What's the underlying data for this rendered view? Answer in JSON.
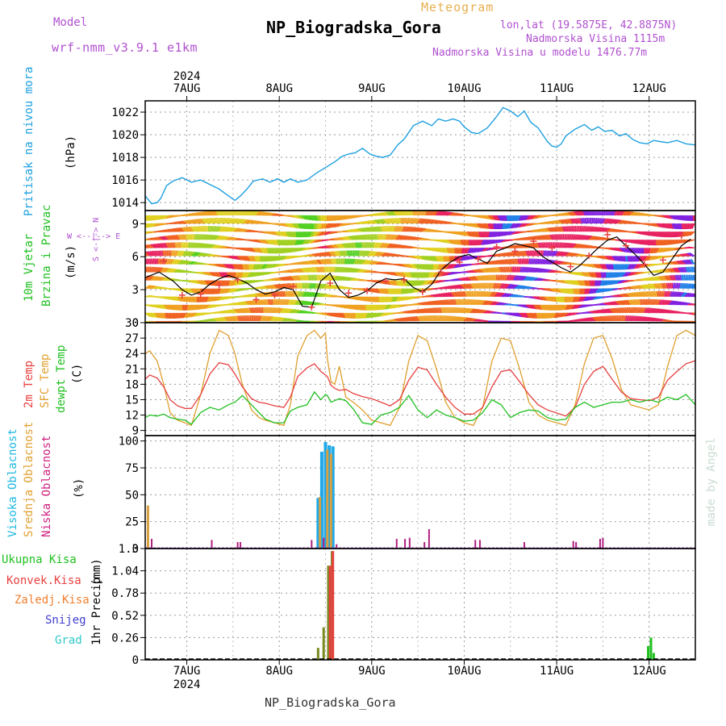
{
  "header": {
    "model_label": "Model",
    "model_name": "wrf-nmm_v3.9.1  e1km",
    "subtitle": "Meteogram",
    "title": "NP_Biogradska_Gora",
    "coords": "lon,lat (19.5875E, 42.8875N)",
    "altitude": "Nadmorska Visina 1115m",
    "model_altitude": "Nadmorska Visina u modelu 1476.77m",
    "watermark": "made by Angel",
    "footer": "NP_Biogradska_Gora"
  },
  "colors": {
    "pressure": "#1ea0e0",
    "t2m": "#e84040",
    "sfc": "#e0a030",
    "dewpt": "#20c020",
    "model": "#b050d0",
    "high_cloud": "#20a8e8",
    "mid_cloud": "#d8a040",
    "low_cloud": "#b02080",
    "total_precip": "#20c020",
    "conv_precip": "#e84040",
    "frozen_precip": "#f08030",
    "snow": "#4040d0",
    "graupel": "#30c8c8"
  },
  "time_axis": {
    "year": "2024",
    "days": [
      "7AUG",
      "8AUG",
      "9AUG",
      "10AUG",
      "11AUG",
      "12AUG"
    ],
    "day_positions": [
      1,
      2,
      3,
      4,
      5,
      6
    ],
    "range": [
      0.55,
      6.5
    ]
  },
  "chart_data": [
    {
      "type": "line",
      "panel": "pressure",
      "ylabel": "Pritisak na nivou mora",
      "unit": "(hPa)",
      "ylim": [
        1013.3,
        1023
      ],
      "yticks": [
        1014,
        1016,
        1018,
        1020,
        1022
      ],
      "x": [
        0.55,
        0.62,
        0.68,
        0.72,
        0.78,
        0.85,
        0.95,
        1.05,
        1.15,
        1.25,
        1.35,
        1.45,
        1.52,
        1.58,
        1.65,
        1.72,
        1.82,
        1.9,
        1.98,
        2.05,
        2.12,
        2.2,
        2.3,
        2.4,
        2.5,
        2.6,
        2.68,
        2.75,
        2.82,
        2.9,
        2.98,
        3.05,
        3.12,
        3.2,
        3.28,
        3.35,
        3.45,
        3.55,
        3.65,
        3.72,
        3.8,
        3.88,
        3.95,
        4.0,
        4.08,
        4.15,
        4.25,
        4.35,
        4.42,
        4.5,
        4.58,
        4.65,
        4.72,
        4.8,
        4.85,
        4.9,
        4.95,
        5.0,
        5.05,
        5.1,
        5.2,
        5.3,
        5.38,
        5.45,
        5.52,
        5.6,
        5.68,
        5.75,
        5.82,
        5.9,
        5.98,
        6.05,
        6.12,
        6.2,
        6.3,
        6.4,
        6.5
      ],
      "values": [
        1014.6,
        1013.9,
        1014.0,
        1014.4,
        1015.5,
        1015.9,
        1016.2,
        1015.8,
        1016.0,
        1015.6,
        1015.2,
        1014.6,
        1014.2,
        1014.6,
        1015.2,
        1015.9,
        1016.1,
        1015.8,
        1016.1,
        1015.8,
        1016.1,
        1015.8,
        1016.0,
        1016.6,
        1017.1,
        1017.6,
        1018.1,
        1018.3,
        1018.4,
        1018.8,
        1018.3,
        1018.1,
        1018.0,
        1018.2,
        1019.1,
        1019.6,
        1020.8,
        1021.2,
        1020.8,
        1021.4,
        1021.2,
        1021.4,
        1021.2,
        1020.7,
        1020.2,
        1020.1,
        1020.6,
        1021.6,
        1022.4,
        1022.1,
        1021.6,
        1022.1,
        1021.1,
        1020.6,
        1020.0,
        1019.4,
        1019.0,
        1018.9,
        1019.2,
        1019.9,
        1020.5,
        1020.9,
        1020.4,
        1020.7,
        1020.3,
        1020.4,
        1019.9,
        1020.1,
        1019.6,
        1019.3,
        1019.2,
        1019.5,
        1019.4,
        1019.3,
        1019.5,
        1019.2,
        1019.1
      ]
    },
    {
      "type": "line",
      "panel": "wind",
      "ylabel": "10m Vjetar",
      "ylabel2": "Brzina i Pravac",
      "unit": "(m/s)",
      "compass": "S <-|-> N",
      "compass2": "W <--|--> E",
      "ylim": [
        0,
        10.2
      ],
      "yticks": [
        0,
        3,
        6,
        9
      ],
      "x": [
        0.55,
        0.7,
        0.85,
        0.95,
        1.05,
        1.15,
        1.25,
        1.35,
        1.45,
        1.55,
        1.65,
        1.75,
        1.85,
        1.95,
        2.05,
        2.15,
        2.25,
        2.35,
        2.45,
        2.55,
        2.65,
        2.75,
        2.85,
        2.95,
        3.05,
        3.15,
        3.25,
        3.35,
        3.45,
        3.55,
        3.65,
        3.75,
        3.85,
        3.95,
        4.05,
        4.15,
        4.25,
        4.35,
        4.45,
        4.55,
        4.65,
        4.75,
        4.85,
        4.95,
        5.05,
        5.15,
        5.25,
        5.35,
        5.45,
        5.55,
        5.65,
        5.75,
        5.85,
        5.95,
        6.05,
        6.15,
        6.25,
        6.35,
        6.45
      ],
      "values": [
        4.1,
        4.6,
        3.8,
        3.0,
        2.5,
        2.8,
        3.5,
        4.0,
        4.3,
        4.0,
        3.6,
        3.0,
        2.6,
        2.8,
        3.2,
        3.0,
        1.5,
        1.4,
        3.8,
        4.5,
        3.0,
        2.3,
        2.5,
        2.9,
        3.6,
        4.0,
        3.9,
        4.0,
        3.2,
        2.8,
        3.5,
        4.8,
        5.5,
        6.0,
        6.2,
        5.8,
        5.4,
        6.5,
        6.8,
        7.2,
        7.0,
        6.8,
        6.0,
        5.5,
        5.0,
        4.6,
        5.2,
        6.0,
        6.8,
        7.5,
        7.8,
        7.0,
        6.2,
        5.3,
        4.3,
        4.6,
        5.8,
        7.0,
        7.6
      ],
      "gusts_x": [
        0.75,
        0.95,
        1.15,
        1.35,
        1.55,
        1.75,
        1.95,
        2.15,
        2.35,
        2.55,
        2.75,
        2.95,
        3.15,
        3.35,
        3.55,
        3.75,
        3.95,
        4.15,
        4.35,
        4.55,
        4.75,
        4.95,
        5.15,
        5.35,
        5.55,
        5.75,
        5.95,
        6.15,
        6.35
      ],
      "gusts": [
        5.6,
        2.5,
        2.6,
        3.4,
        3.9,
        2.1,
        2.5,
        3.3,
        1.4,
        3.6,
        2.7,
        2.9,
        3.8,
        3.9,
        2.8,
        4.6,
        5.5,
        5.8,
        6.9,
        6.5,
        7.4,
        6.8,
        5.1,
        6.1,
        8.0,
        7.0,
        5.3,
        5.7,
        7.9
      ]
    },
    {
      "type": "line",
      "panel": "temperature",
      "ylabel": "2m Temp",
      "ylabel2": "SFC Temp",
      "ylabel3": "dewpt Temp",
      "unit": "(C)",
      "ylim": [
        8,
        30
      ],
      "yticks": [
        9,
        12,
        15,
        18,
        21,
        24,
        27,
        30
      ],
      "x": [
        0.55,
        0.6,
        0.68,
        0.75,
        0.82,
        0.9,
        0.98,
        1.05,
        1.15,
        1.25,
        1.35,
        1.45,
        1.52,
        1.6,
        1.7,
        1.78,
        1.85,
        1.95,
        2.05,
        2.12,
        2.2,
        2.3,
        2.38,
        2.45,
        2.5,
        2.52,
        2.56,
        2.6,
        2.65,
        2.72,
        2.8,
        2.9,
        3.0,
        3.1,
        3.2,
        3.3,
        3.4,
        3.5,
        3.6,
        3.7,
        3.8,
        3.9,
        4.0,
        4.1,
        4.2,
        4.3,
        4.4,
        4.5,
        4.6,
        4.7,
        4.8,
        4.9,
        5.0,
        5.1,
        5.2,
        5.3,
        5.4,
        5.5,
        5.6,
        5.7,
        5.8,
        5.9,
        6.0,
        6.1,
        6.2,
        6.3,
        6.4,
        6.5
      ],
      "series": [
        {
          "name": "2m Temp",
          "values": [
            19.0,
            19.8,
            19.2,
            17.5,
            15.0,
            13.8,
            13.3,
            13.3,
            16.0,
            20.0,
            22.2,
            21.8,
            20.0,
            17.5,
            15.2,
            14.5,
            14.3,
            13.8,
            13.5,
            15.5,
            19.5,
            21.2,
            22.0,
            20.5,
            19.8,
            19.5,
            17.8,
            17.2,
            16.8,
            17.0,
            16.2,
            15.6,
            15.2,
            14.5,
            13.8,
            15.0,
            18.8,
            21.3,
            20.8,
            18.0,
            15.5,
            13.5,
            12.2,
            12.2,
            13.5,
            17.5,
            20.5,
            20.8,
            18.5,
            16.0,
            14.0,
            13.0,
            12.4,
            11.8,
            13.5,
            18.0,
            20.5,
            21.5,
            19.0,
            16.5,
            15.2,
            15.0,
            14.8,
            15.5,
            18.8,
            20.5,
            22.0,
            22.6
          ]
        },
        {
          "name": "SFC Temp",
          "values": [
            24.0,
            24.5,
            22.5,
            18.0,
            12.5,
            11.0,
            10.5,
            10.0,
            16.0,
            24.0,
            28.5,
            27.5,
            24.0,
            18.0,
            13.0,
            11.5,
            11.0,
            10.5,
            10.0,
            14.0,
            23.5,
            27.5,
            28.5,
            27.0,
            28.0,
            23.0,
            18.5,
            18.0,
            21.5,
            15.5,
            14.5,
            13.0,
            11.0,
            10.5,
            10.0,
            13.5,
            22.5,
            27.5,
            26.5,
            21.0,
            14.5,
            11.5,
            10.5,
            10.0,
            13.5,
            22.5,
            27.0,
            26.5,
            21.0,
            14.5,
            12.0,
            11.0,
            10.5,
            10.0,
            14.0,
            22.0,
            27.0,
            27.5,
            23.0,
            17.0,
            14.0,
            13.5,
            13.0,
            14.0,
            21.5,
            27.5,
            28.5,
            27.5
          ]
        },
        {
          "name": "dewpt Temp",
          "values": [
            11.5,
            12.0,
            11.8,
            12.2,
            11.5,
            11.2,
            11.0,
            10.2,
            12.5,
            13.5,
            13.0,
            14.0,
            14.5,
            15.8,
            14.0,
            12.5,
            11.2,
            10.5,
            10.5,
            12.8,
            13.5,
            14.0,
            16.5,
            15.0,
            16.0,
            15.8,
            14.5,
            14.8,
            15.2,
            14.8,
            13.2,
            10.5,
            10.2,
            12.0,
            12.5,
            13.5,
            15.8,
            13.0,
            11.5,
            13.0,
            12.0,
            11.5,
            10.8,
            11.0,
            12.5,
            15.0,
            14.0,
            11.5,
            12.5,
            13.0,
            12.8,
            11.5,
            11.0,
            11.2,
            13.5,
            14.5,
            13.5,
            14.0,
            14.5,
            14.5,
            15.0,
            14.5,
            15.0,
            14.5,
            15.5,
            15.0,
            16.0,
            14.0
          ]
        }
      ]
    },
    {
      "type": "bar",
      "panel": "cloud",
      "ylabel": "Visoka Oblacnost",
      "ylabel2": "Srednja Oblacnost",
      "ylabel3": "Niska Oblacnost",
      "unit": "(%)",
      "ylim": [
        0,
        105
      ],
      "yticks": [
        0,
        25,
        50,
        75,
        100
      ],
      "series": [
        {
          "name": "Visoka Oblacnost",
          "x": [
            2.42,
            2.46,
            2.5,
            2.54,
            2.58
          ],
          "values": [
            47,
            90,
            99,
            96,
            95
          ]
        },
        {
          "name": "Srednja Oblacnost",
          "x": [
            0.58,
            2.44,
            2.52,
            2.56
          ],
          "values": [
            40,
            48,
            92,
            88
          ]
        },
        {
          "name": "Niska Oblacnost",
          "x": [
            0.62,
            1.27,
            1.55,
            1.58,
            2.35,
            2.48,
            2.62,
            3.27,
            3.36,
            3.41,
            3.57,
            3.62,
            4.12,
            4.17,
            4.65,
            5.18,
            5.21,
            5.47,
            5.5
          ],
          "values": [
            9,
            8,
            6,
            6,
            8,
            10,
            4,
            9,
            9,
            10,
            6,
            18,
            8,
            8,
            6,
            7,
            6,
            9,
            10
          ]
        }
      ]
    },
    {
      "type": "bar",
      "panel": "precip",
      "ylabel": "1hr Precip",
      "unit": "(mm)",
      "legend": [
        "Ukupna Kisa",
        "Konvek.Kisa",
        "Zaledj.Kisa",
        "Snijeg",
        "Grad"
      ],
      "ylim": [
        0,
        1.3
      ],
      "yticks": [
        0,
        0.26,
        0.52,
        0.78,
        1.04,
        1.3
      ],
      "series": [
        {
          "name": "Ukupna Kisa",
          "x": [
            2.42,
            2.48,
            2.53,
            2.57,
            5.99,
            6.02,
            6.05
          ],
          "values": [
            0.14,
            0.38,
            1.1,
            1.27,
            0.16,
            0.26,
            0.08
          ]
        },
        {
          "name": "Konvek.Kisa",
          "x": [
            2.55,
            2.58
          ],
          "values": [
            1.1,
            1.27
          ]
        }
      ]
    }
  ]
}
